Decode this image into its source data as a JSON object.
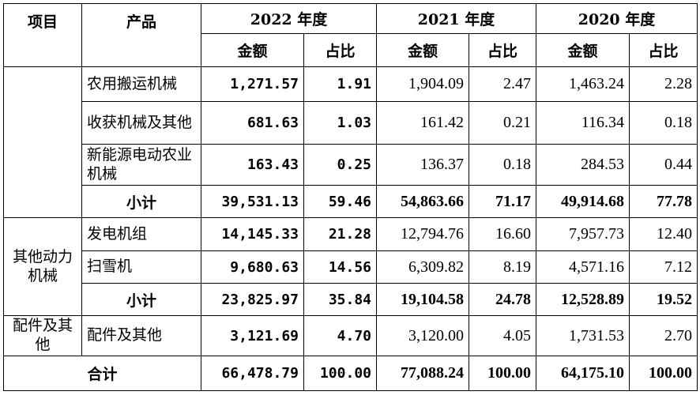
{
  "header": {
    "col_item": "项目",
    "col_product": "产品",
    "years": [
      "2022 年度",
      "2021 年度",
      "2020 年度"
    ],
    "amount": "金额",
    "ratio": "占比"
  },
  "rows": [
    {
      "product": "农用搬运机械",
      "v2022": "1,271.57",
      "r2022": "1.91",
      "v2021": "1,904.09",
      "r2021": "2.47",
      "v2020": "1,463.24",
      "r2020": "2.28"
    },
    {
      "product": "收获机械及其他",
      "v2022": "681.63",
      "r2022": "1.03",
      "v2021": "161.42",
      "r2021": "0.21",
      "v2020": "116.34",
      "r2020": "0.18"
    },
    {
      "product": "新能源电动农业机械",
      "v2022": "163.43",
      "r2022": "0.25",
      "v2021": "136.37",
      "r2021": "0.18",
      "v2020": "284.53",
      "r2020": "0.44"
    },
    {
      "product": "小计",
      "v2022": "39,531.13",
      "r2022": "59.46",
      "v2021": "54,863.66",
      "r2021": "71.17",
      "v2020": "49,914.68",
      "r2020": "77.78"
    },
    {
      "category": "其他动力机械",
      "product": "发电机组",
      "v2022": "14,145.33",
      "r2022": "21.28",
      "v2021": "12,794.76",
      "r2021": "16.60",
      "v2020": "7,957.73",
      "r2020": "12.40"
    },
    {
      "product": "扫雪机",
      "v2022": "9,680.63",
      "r2022": "14.56",
      "v2021": "6,309.82",
      "r2021": "8.19",
      "v2020": "4,571.16",
      "r2020": "7.12"
    },
    {
      "product": "小计",
      "v2022": "23,825.97",
      "r2022": "35.84",
      "v2021": "19,104.58",
      "r2021": "24.78",
      "v2020": "12,528.89",
      "r2020": "19.52"
    },
    {
      "category": "配件及其他",
      "product": "配件及其他",
      "v2022": "3,121.69",
      "r2022": "4.70",
      "v2021": "3,120.00",
      "r2021": "4.05",
      "v2020": "1,731.53",
      "r2020": "2.70"
    },
    {
      "product": "合计",
      "v2022": "66,478.79",
      "r2022": "100.00",
      "v2021": "77,088.24",
      "r2021": "100.00",
      "v2020": "64,175.10",
      "r2020": "100.00"
    }
  ]
}
